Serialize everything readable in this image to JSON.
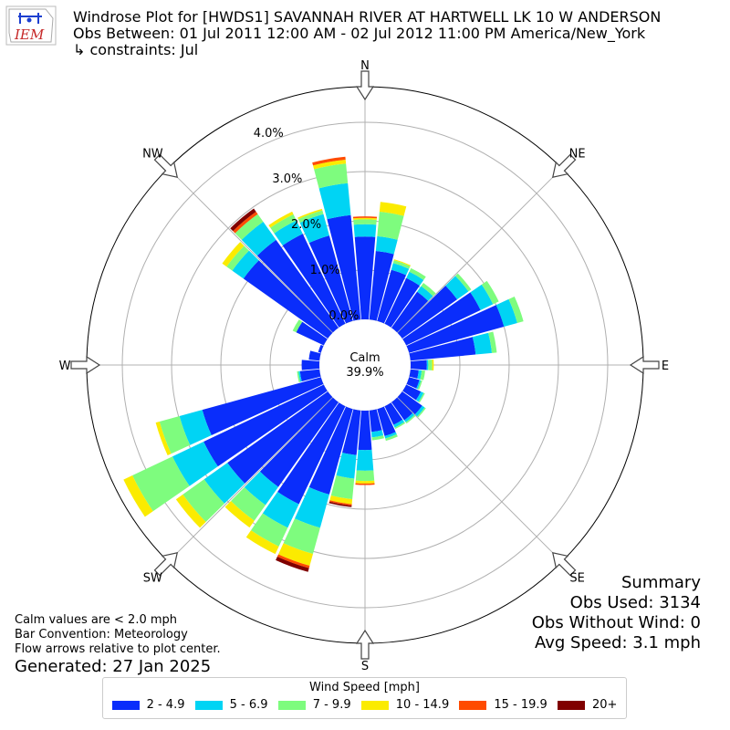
{
  "header": {
    "title": "Windrose Plot for [HWDS1] SAVANNAH RIVER  AT HARTWELL LK 10 W ANDERSON",
    "obs_between": "Obs Between: 01 Jul 2011 12:00 AM - 02 Jul 2012 11:00 PM America/New_York",
    "constraints": "↳ constraints: Jul",
    "logo_text": "IEM"
  },
  "footer": {
    "note1": "Calm values are < 2.0 mph",
    "note2": "Bar Convention: Meteorology",
    "note3": "Flow arrows relative to plot center.",
    "generated": "Generated: 27 Jan 2025"
  },
  "summary": {
    "title": "Summary",
    "obs_used": "Obs Used: 3134",
    "obs_without_wind": "Obs Without Wind: 0",
    "avg_speed": "Avg Speed: 3.1 mph"
  },
  "chart_data": {
    "type": "windrose",
    "calm_label": "Calm",
    "calm_value": "39.9%",
    "radial_unit": "percent",
    "radial_ticks": [
      0,
      1,
      2,
      3,
      4
    ],
    "radial_tick_labels": [
      "0.0%",
      "1.0%",
      "2.0%",
      "3.0%",
      "4.0%"
    ],
    "directions": [
      "N",
      "NE",
      "E",
      "SE",
      "S",
      "SW",
      "W",
      "NW"
    ],
    "legend_title": "Wind Speed [mph]",
    "speed_bins": [
      {
        "label": "2 - 4.9",
        "color": "#0a2dfb"
      },
      {
        "label": "5 - 6.9",
        "color": "#00d4f4"
      },
      {
        "label": "7 - 9.9",
        "color": "#7efc7e"
      },
      {
        "label": "10 - 14.9",
        "color": "#fbeb00"
      },
      {
        "label": "15 - 19.9",
        "color": "#ff4b00"
      },
      {
        "label": "20+",
        "color": "#800000"
      }
    ],
    "bars": [
      {
        "dir": 0,
        "values": [
          1.68,
          0.25,
          0.1,
          0.03,
          0.03,
          0.0
        ]
      },
      {
        "dir": 10,
        "values": [
          1.4,
          0.3,
          0.5,
          0.2,
          0.0,
          0.0
        ]
      },
      {
        "dir": 20,
        "values": [
          1.08,
          0.14,
          0.06,
          0.02,
          0.0,
          0.0
        ]
      },
      {
        "dir": 30,
        "values": [
          1.03,
          0.14,
          0.08,
          0.0,
          0.0,
          0.0
        ]
      },
      {
        "dir": 40,
        "values": [
          0.9,
          0.14,
          0.08,
          0.0,
          0.0,
          0.0
        ]
      },
      {
        "dir": 50,
        "values": [
          1.37,
          0.28,
          0.07,
          0.0,
          0.0,
          0.0
        ]
      },
      {
        "dir": 60,
        "values": [
          1.67,
          0.28,
          0.13,
          0.0,
          0.0,
          0.0
        ]
      },
      {
        "dir": 70,
        "values": [
          2.0,
          0.28,
          0.13,
          0.0,
          0.0,
          0.0
        ]
      },
      {
        "dir": 80,
        "values": [
          1.33,
          0.33,
          0.1,
          0.0,
          0.0,
          0.0
        ]
      },
      {
        "dir": 90,
        "values": [
          0.33,
          0.03,
          0.08,
          0.03,
          0.0,
          0.0
        ]
      },
      {
        "dir": 100,
        "values": [
          0.17,
          0.06,
          0.07,
          0.0,
          0.0,
          0.0
        ]
      },
      {
        "dir": 110,
        "values": [
          0.22,
          0.03,
          0.03,
          0.0,
          0.0,
          0.0
        ]
      },
      {
        "dir": 120,
        "values": [
          0.33,
          0.06,
          0.03,
          0.0,
          0.0,
          0.0
        ]
      },
      {
        "dir": 130,
        "values": [
          0.5,
          0.06,
          0.03,
          0.0,
          0.0,
          0.0
        ]
      },
      {
        "dir": 140,
        "values": [
          0.45,
          0.05,
          0.03,
          0.0,
          0.0,
          0.0
        ]
      },
      {
        "dir": 150,
        "values": [
          0.42,
          0.06,
          0.03,
          0.0,
          0.0,
          0.0
        ]
      },
      {
        "dir": 160,
        "values": [
          0.57,
          0.05,
          0.05,
          0.0,
          0.0,
          0.0
        ]
      },
      {
        "dir": 170,
        "values": [
          0.44,
          0.11,
          0.06,
          0.0,
          0.0,
          0.0
        ]
      },
      {
        "dir": 180,
        "values": [
          0.8,
          0.42,
          0.21,
          0.05,
          0.03,
          0.0
        ]
      },
      {
        "dir": 190,
        "values": [
          0.91,
          0.48,
          0.42,
          0.1,
          0.03,
          0.03
        ]
      },
      {
        "dir": 200,
        "values": [
          1.8,
          0.7,
          0.55,
          0.25,
          0.05,
          0.08
        ]
      },
      {
        "dir": 210,
        "values": [
          2.2,
          0.53,
          0.42,
          0.17,
          0.0,
          0.0
        ]
      },
      {
        "dir": 220,
        "values": [
          2.11,
          0.45,
          0.39,
          0.17,
          0.0,
          0.0
        ]
      },
      {
        "dir": 230,
        "values": [
          2.5,
          0.58,
          0.53,
          0.17,
          0.0,
          0.0
        ]
      },
      {
        "dir": 240,
        "values": [
          2.7,
          0.7,
          0.9,
          0.2,
          0.0,
          0.0
        ]
      },
      {
        "dir": 250,
        "values": [
          2.5,
          0.48,
          0.42,
          0.08,
          0.0,
          0.0
        ]
      },
      {
        "dir": 260,
        "values": [
          0.4,
          0.03,
          0.03,
          0.0,
          0.0,
          0.0
        ]
      },
      {
        "dir": 270,
        "values": [
          0.36,
          0.0,
          0.0,
          0.0,
          0.0,
          0.0
        ]
      },
      {
        "dir": 280,
        "values": [
          0.22,
          0.0,
          0.0,
          0.0,
          0.0,
          0.0
        ]
      },
      {
        "dir": 290,
        "values": [
          0.06,
          0.0,
          0.0,
          0.0,
          0.0,
          0.0
        ]
      },
      {
        "dir": 300,
        "values": [
          0.62,
          0.0,
          0.08,
          0.0,
          0.0,
          0.0
        ]
      },
      {
        "dir": 310,
        "values": [
          2.1,
          0.28,
          0.14,
          0.11,
          0.0,
          0.0
        ]
      },
      {
        "dir": 320,
        "values": [
          2.19,
          0.45,
          0.19,
          0.0,
          0.06,
          0.08
        ]
      },
      {
        "dir": 330,
        "values": [
          2.02,
          0.3,
          0.14,
          0.06,
          0.0,
          0.0
        ]
      },
      {
        "dir": 340,
        "values": [
          1.8,
          0.45,
          0.08,
          0.03,
          0.0,
          0.0
        ]
      },
      {
        "dir": 350,
        "values": [
          2.13,
          0.65,
          0.4,
          0.08,
          0.06,
          0.0
        ]
      }
    ]
  }
}
